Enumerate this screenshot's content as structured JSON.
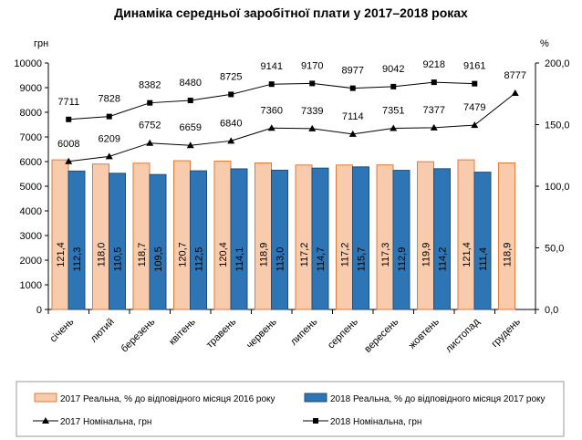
{
  "chart_data": {
    "type": "bar+line",
    "title": "Динаміка середньої заробітної плати у 2017–2018 роках",
    "ylabel_left": "грн",
    "ylabel_right": "%",
    "ylim_left": [
      0,
      10000
    ],
    "ylim_right": [
      0,
      200
    ],
    "yticks_left": [
      "0",
      "1000",
      "2000",
      "3000",
      "4000",
      "5000",
      "6000",
      "7000",
      "8000",
      "9000",
      "10000"
    ],
    "yticks_right": [
      "0,0",
      "50,0",
      "100,0",
      "150,0",
      "200,0"
    ],
    "categories": [
      "січень",
      "лютий",
      "березень",
      "квітень",
      "травень",
      "червень",
      "липень",
      "серпень",
      "вересень",
      "жовтень",
      "листопад",
      "грудень"
    ],
    "bars": [
      {
        "name": "2017 Реальна, % до відповідного місяця 2016 року",
        "color": "#f8cbad",
        "stroke": "#e07b39",
        "axis": "right",
        "values": [
          121.4,
          118.0,
          118.7,
          120.7,
          120.4,
          118.9,
          117.2,
          117.2,
          117.3,
          119.9,
          121.4,
          118.9
        ],
        "labels": [
          "121,4",
          "118,0",
          "118,7",
          "120,7",
          "120,4",
          "118,9",
          "117,2",
          "117,2",
          "117,3",
          "119,9",
          "121,4",
          "118,9"
        ]
      },
      {
        "name": "2018 Реальна, % до відповідного місяця 2017 року",
        "color": "#2e75b6",
        "stroke": "#1f4e79",
        "axis": "right",
        "values": [
          112.3,
          110.5,
          109.5,
          112.5,
          114.1,
          113.0,
          114.7,
          115.7,
          112.9,
          114.2,
          111.4,
          null
        ],
        "labels": [
          "112,3",
          "110,5",
          "109,5",
          "112,5",
          "114,1",
          "113,0",
          "114,7",
          "115,7",
          "112,9",
          "114,2",
          "111,4",
          null
        ]
      }
    ],
    "lines": [
      {
        "name": "2017 Номінальна, грн",
        "marker": "triangle",
        "axis": "left",
        "values": [
          6008,
          6209,
          6752,
          6659,
          6840,
          7360,
          7339,
          7114,
          7351,
          7377,
          7479,
          8777
        ]
      },
      {
        "name": "2018 Номінальна, грн",
        "marker": "square",
        "axis": "left",
        "values": [
          7711,
          7828,
          8382,
          8480,
          8725,
          9141,
          9170,
          8977,
          9042,
          9218,
          9161,
          null
        ]
      }
    ],
    "legend": "bottom"
  }
}
